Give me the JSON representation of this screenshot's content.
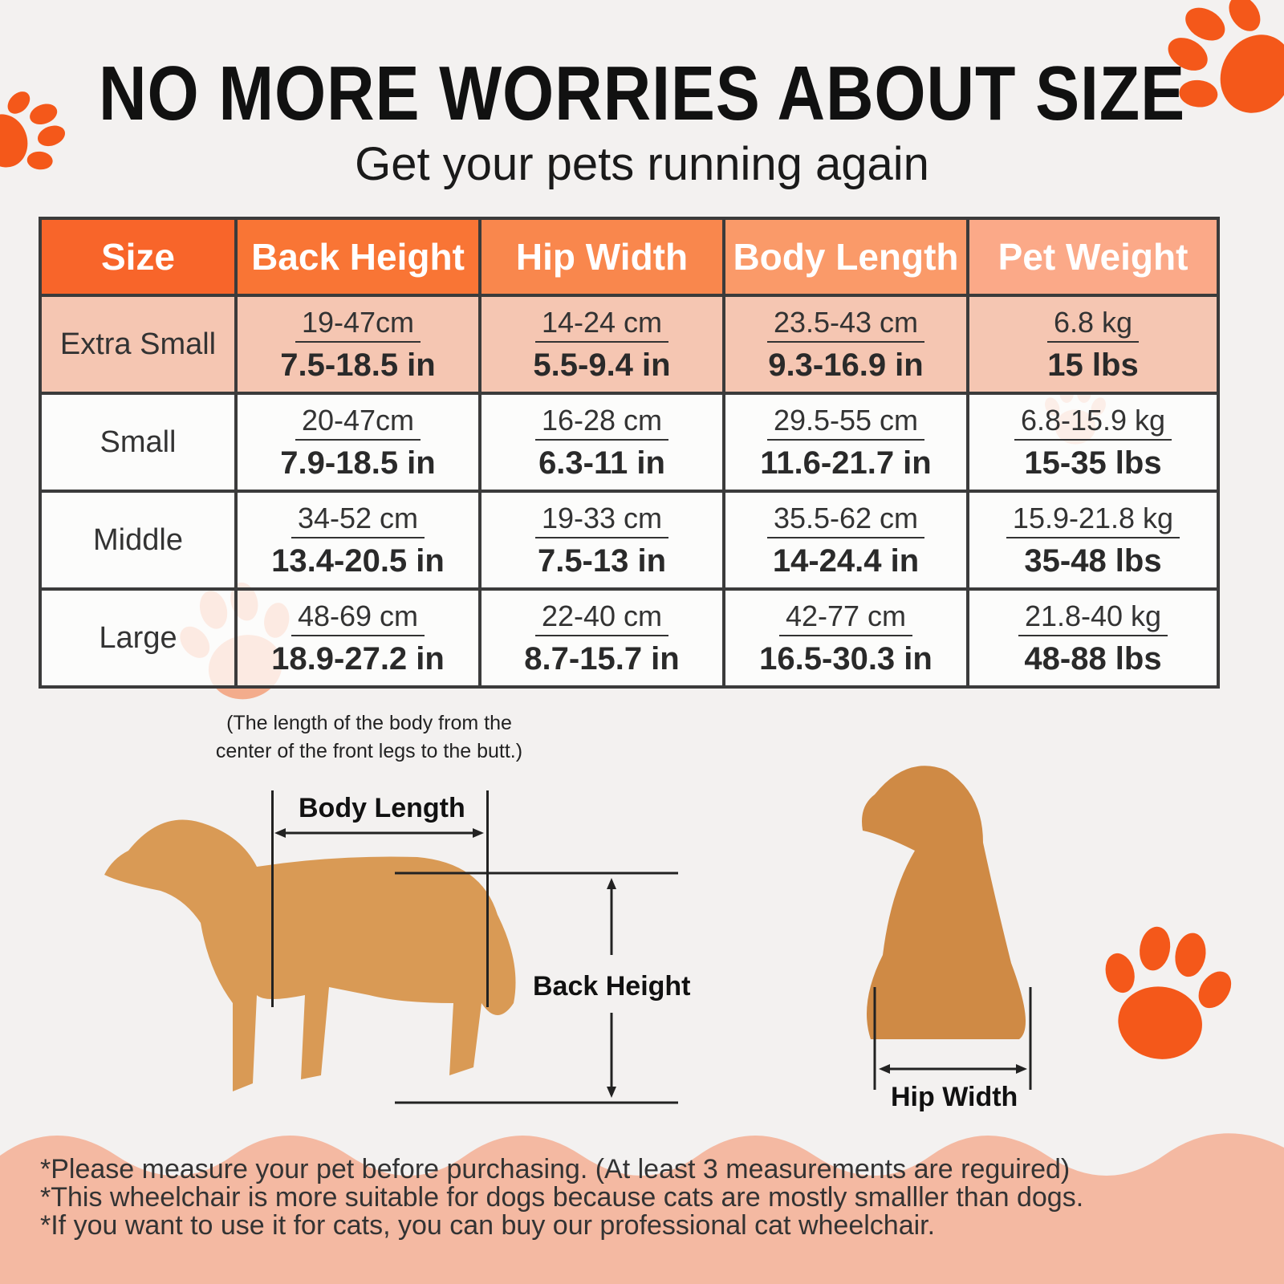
{
  "header": {
    "title": "NO MORE WORRIES ABOUT SIZE",
    "subtitle": "Get your pets running again"
  },
  "colors": {
    "accent": "#f8652a",
    "highlight_row": "#f5c6b2",
    "footer": "#f4b9a2"
  },
  "table": {
    "columns": [
      "Size",
      "Back Height",
      "Hip Width",
      "Body Length",
      "Pet Weight"
    ],
    "rows": [
      {
        "size": "Extra Small",
        "cells": [
          [
            "19-47cm",
            "7.5-18.5 in"
          ],
          [
            "14-24 cm",
            "5.5-9.4 in"
          ],
          [
            "23.5-43 cm",
            "9.3-16.9 in"
          ],
          [
            "6.8 kg",
            "15 lbs"
          ]
        ]
      },
      {
        "size": "Small",
        "cells": [
          [
            "20-47cm",
            "7.9-18.5 in"
          ],
          [
            "16-28 cm",
            "6.3-11 in"
          ],
          [
            "29.5-55 cm",
            "11.6-21.7 in"
          ],
          [
            "6.8-15.9 kg",
            "15-35 lbs"
          ]
        ]
      },
      {
        "size": "Middle",
        "cells": [
          [
            "34-52 cm",
            "13.4-20.5 in"
          ],
          [
            "19-33 cm",
            "7.5-13 in"
          ],
          [
            "35.5-62 cm",
            "14-24.4 in"
          ],
          [
            "15.9-21.8 kg",
            "35-48 lbs"
          ]
        ]
      },
      {
        "size": "Large",
        "cells": [
          [
            "48-69 cm",
            "18.9-27.2 in"
          ],
          [
            "22-40 cm",
            "8.7-15.7 in"
          ],
          [
            "42-77 cm",
            "16.5-30.3 in"
          ],
          [
            "21.8-40 kg",
            "48-88 lbs"
          ]
        ]
      }
    ]
  },
  "diagram": {
    "body_length_note": [
      "(The length of the body from the",
      "center of the front legs to the butt.)"
    ],
    "body_length_label": "Body Length",
    "back_height_label": "Back Height",
    "hip_width_label": "Hip Width"
  },
  "notes": [
    "*Please measure your pet before purchasing. (At least 3 measurements are reguired)",
    "*This wheelchair is more suitable for dogs because cats are mostly smalller than dogs.",
    "*If you want to use it for cats, you can buy our professional cat wheelchair."
  ]
}
